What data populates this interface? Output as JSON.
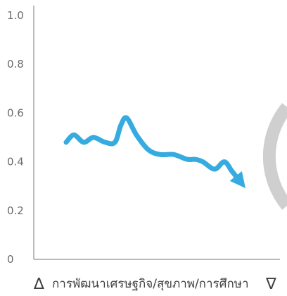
{
  "chart_data": {
    "type": "line",
    "xlabel": "การพัฒนาเศรษฐกิจ/สุขภาพ/การศึกษา",
    "ylabel": "",
    "ylim": [
      0,
      1.0
    ],
    "yticks": [
      "0",
      "0.2",
      "0.4",
      "0.6",
      "0.8",
      "1.0"
    ],
    "xlim": [
      0,
      1
    ],
    "xticks": [],
    "grid": false,
    "series": [
      {
        "x": [
          0.0,
          0.04,
          0.09,
          0.14,
          0.2,
          0.25,
          0.28,
          0.31,
          0.36,
          0.42,
          0.48,
          0.55,
          0.62,
          0.66,
          0.7,
          0.76,
          0.81,
          0.85,
          0.9
        ],
        "values": [
          0.48,
          0.51,
          0.48,
          0.5,
          0.48,
          0.48,
          0.55,
          0.58,
          0.51,
          0.45,
          0.43,
          0.43,
          0.41,
          0.41,
          0.4,
          0.37,
          0.4,
          0.36,
          0.31
        ],
        "color": "#35ABE0",
        "arrow_end": true
      }
    ],
    "x_arrows": {
      "left": "∆",
      "right": "∇"
    }
  }
}
